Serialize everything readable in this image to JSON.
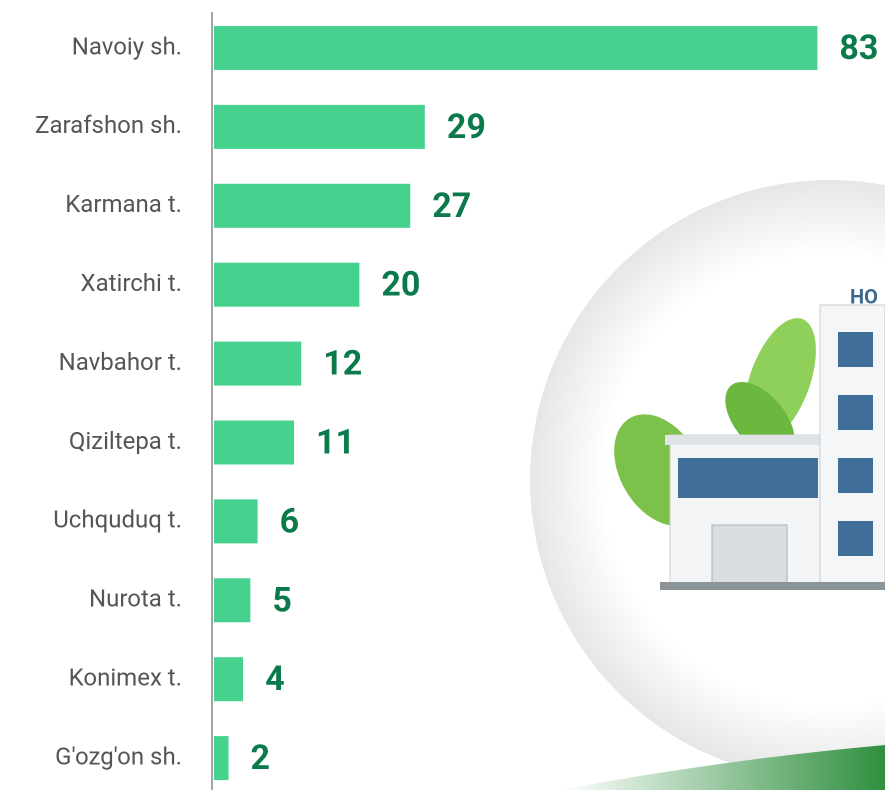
{
  "chart_data": {
    "type": "bar",
    "orientation": "horizontal",
    "categories": [
      "Navoiy sh.",
      "Zarafshon sh.",
      "Karmana t.",
      "Xatirchi t.",
      "Navbahor t.",
      "Qiziltepa t.",
      "Uchquduq t.",
      "Nurota t.",
      "Konimex t.",
      "G'ozg'on sh."
    ],
    "values": [
      83,
      29,
      27,
      20,
      12,
      11,
      6,
      5,
      4,
      2
    ],
    "color": "#47d18f",
    "label_color": "#0b7a4b",
    "annotation": "HO"
  }
}
